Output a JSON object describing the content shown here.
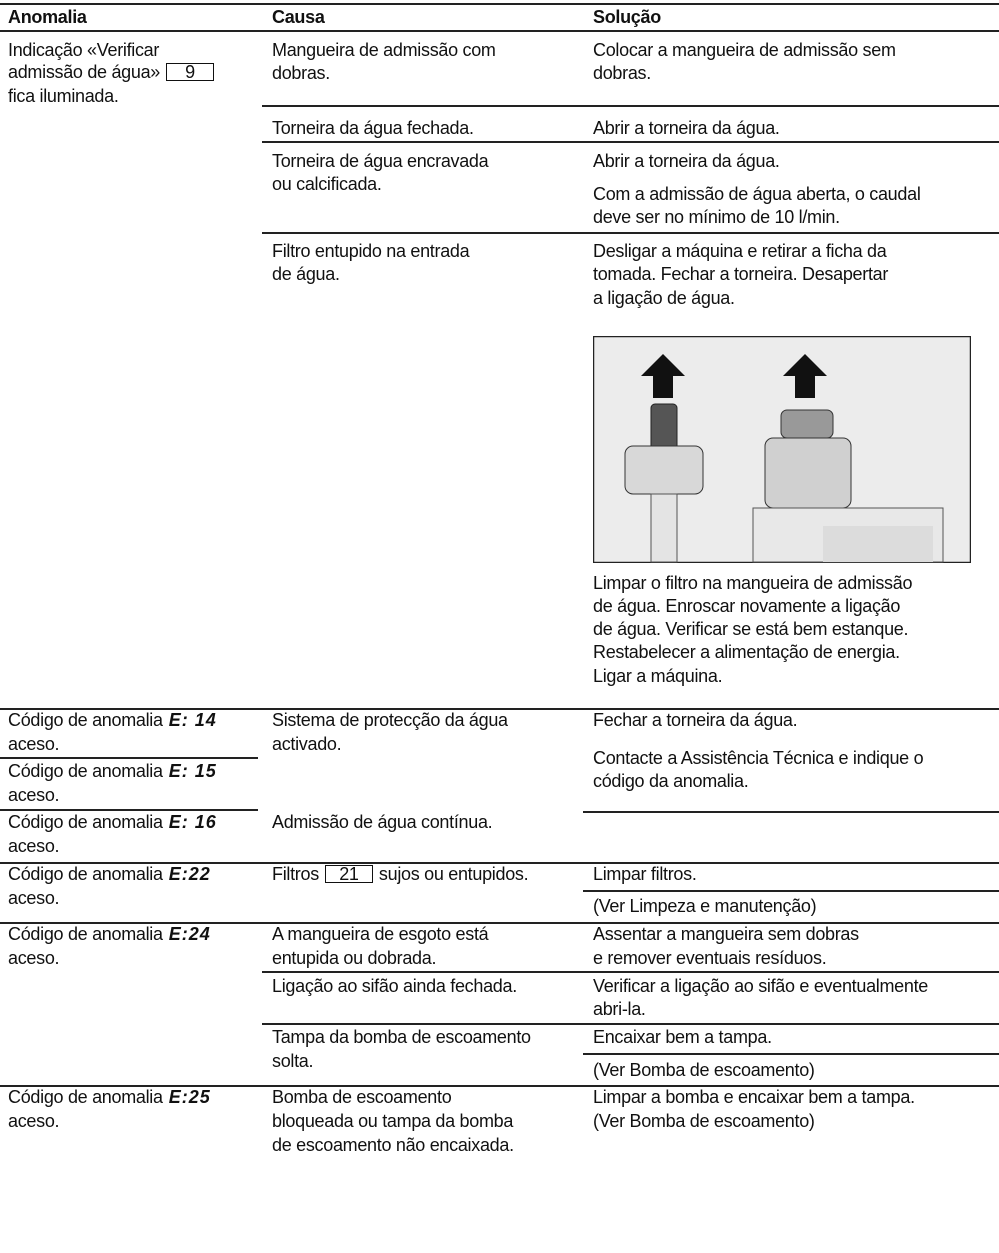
{
  "header": {
    "anomaly": "Anomalia",
    "cause": "Causa",
    "solution": "Solução"
  },
  "rows": [
    {
      "anomaly": [
        "Indicação «Verificar",
        "admissão de água»",
        "fica iluminada."
      ],
      "button": "9",
      "items": [
        {
          "cause": [
            "Mangueira de admissão com",
            "dobras."
          ],
          "solutions": [
            [
              "Colocar a mangueira de admissão sem",
              "dobras."
            ]
          ]
        },
        {
          "cause": [
            "Torneira da água fechada."
          ],
          "solutions": [
            [
              "Abrir a torneira da água."
            ]
          ]
        },
        {
          "cause": [
            "Torneira de água encravada",
            "ou calcificada."
          ],
          "solutions": [
            [
              "Abrir a torneira da água."
            ],
            [
              "Com a admissão de água aberta, o caudal",
              "deve ser no mínimo de 10 l/min."
            ]
          ]
        },
        {
          "cause": [
            "Filtro entupido na entrada",
            "de água."
          ],
          "solutions": [
            [
              "Desligar a máquina e retirar a ficha da",
              "tomada. Fechar a torneira. Desapertar",
              "a ligação de água."
            ],
            [
              "Limpar o filtro na mangueira de admissão",
              "de água. Enroscar novamente a ligação",
              "de água. Verificar se está bem estanque.",
              "Restabelecer a alimentação de energia.",
              "Ligar a máquina."
            ]
          ]
        }
      ]
    },
    {
      "anomalies": [
        {
          "label": "Código de anomalia",
          "code": "E: 14",
          "status": "aceso."
        },
        {
          "label": "Código de anomalia",
          "code": "E: 15",
          "status": "aceso."
        },
        {
          "label": "Código de anomalia",
          "code": "E: 16",
          "status": "aceso."
        }
      ],
      "items": [
        {
          "cause": [
            "Sistema de protecção da água",
            "activado."
          ]
        },
        {
          "cause": [
            "Admissão de água contínua."
          ]
        }
      ],
      "solutions": [
        [
          "Fechar a torneira da água."
        ],
        [
          "Contacte a Assistência Técnica e indique o",
          "código da anomalia."
        ]
      ]
    },
    {
      "anomalies": [
        {
          "label": "Código de anomalia",
          "code": "E:22",
          "status": "aceso."
        }
      ],
      "items": [
        {
          "cause": [
            "Filtros",
            "sujos ou entupidos."
          ],
          "button": "21",
          "solutions": [
            [
              "Limpar filtros."
            ],
            [
              "(Ver Limpeza e manutenção)"
            ]
          ]
        }
      ]
    },
    {
      "anomalies": [
        {
          "label": "Código de anomalia",
          "code": "E:24",
          "status": "aceso."
        }
      ],
      "items": [
        {
          "cause": [
            "A mangueira de esgoto está",
            "entupida ou dobrada."
          ],
          "solutions": [
            [
              "Assentar a mangueira sem dobras",
              "e remover eventuais resíduos."
            ]
          ]
        },
        {
          "cause": [
            "Ligação ao sifão ainda fechada."
          ],
          "solutions": [
            [
              "Verificar a ligação ao sifão e eventualmente",
              "abri-la."
            ]
          ]
        },
        {
          "cause": [
            "Tampa da bomba de escoamento",
            "solta."
          ],
          "solutions": [
            [
              "Encaixar bem a tampa."
            ],
            [
              "(Ver Bomba de escoamento)"
            ]
          ]
        }
      ]
    },
    {
      "anomalies": [
        {
          "label": "Código de anomalia",
          "code": "E:25",
          "status": "aceso."
        }
      ],
      "items": [
        {
          "cause": [
            "Bomba de escoamento",
            "bloqueada ou tampa da bomba",
            "de escoamento não encaixada."
          ],
          "solutions": [
            [
              "Limpar a bomba e encaixar bem a tampa.",
              "(Ver Bomba de escoamento)"
            ]
          ]
        }
      ]
    }
  ]
}
